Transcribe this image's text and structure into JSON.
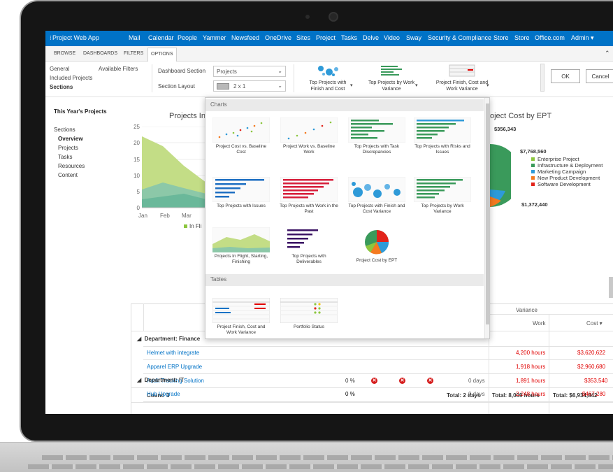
{
  "suite": {
    "app_title": "Project Web App",
    "nav": [
      "Mail",
      "Calendar",
      "People",
      "Yammer",
      "Newsfeed",
      "OneDrive",
      "Sites",
      "Project",
      "Tasks",
      "Delve",
      "Video",
      "Sway",
      "Security & Compliance",
      "Store",
      "Store",
      "Office.com"
    ],
    "admin": "Admin ▾",
    "accent": "#0072c6"
  },
  "ribbon_tabs": [
    "BROWSE",
    "DASHBOARDS",
    "FILTERS",
    "OPTIONS"
  ],
  "ribbon": {
    "general": "General",
    "included_projects": "Included Projects",
    "sections": "Sections",
    "available_filters": "Available Filters",
    "dashboard_section_label": "Dashboard Section",
    "dashboard_section_value": "Projects",
    "section_layout_label": "Section Layout",
    "section_layout_value": "2 x 1",
    "btn1": "Top Projects with Finish and Cost",
    "btn2": "Top Projects by Work Variance",
    "btn3": "Project Finish, Cost and Work Variance",
    "ok": "OK",
    "cancel": "Cancel"
  },
  "sidebar": {
    "title": "This Year's Projects",
    "sections_label": "Sections",
    "items": [
      "Overview",
      "Projects",
      "Tasks",
      "Resources",
      "Content"
    ]
  },
  "area_chart": {
    "title": "Projects In",
    "y_ticks": [
      "25",
      "20",
      "15",
      "10",
      "5",
      "0"
    ],
    "x_ticks": [
      "Jan",
      "Feb",
      "Mar"
    ],
    "legend": "In Fli"
  },
  "pie_chart": {
    "title": "oject Cost by EPT",
    "labels": [
      "$356,343",
      "$7,768,560",
      "$1,372,440"
    ],
    "legend": [
      {
        "name": "Enterprise Project",
        "color": "#8cc63f"
      },
      {
        "name": "Infrastructure & Deployment",
        "color": "#3a9a5b"
      },
      {
        "name": "Marketing Campaign",
        "color": "#2e9ad8"
      },
      {
        "name": "New Product Development",
        "color": "#f47a20"
      },
      {
        "name": "Software Development",
        "color": "#e2231a"
      }
    ]
  },
  "popup": {
    "charts_header": "Charts",
    "tables_header": "Tables",
    "charts": [
      "Project Cost vs. Baseline Cost",
      "Project Work vs. Baseline Work",
      "Top Projects with Task Discrepancies",
      "Top Projects with Risks and Issues",
      "Top Projects with Issues",
      "Top Projects with Work in the Past",
      "Top Projects with Finish and Cost Variance",
      "Top Projects by Work Variance",
      "Projects In Flight, Starting, Finishing",
      "Top Projects with Deliverables",
      "Project Cost by EPT"
    ],
    "tables": [
      "Project Finish, Cost and Work Variance",
      "Portfolio Status"
    ]
  },
  "table": {
    "variance": "Variance",
    "work": "Work",
    "cost": "Cost ▾",
    "dept_finance": "Department: Finance",
    "dept_it": "Department: IT",
    "rows": [
      {
        "name": "Helmet with integrate",
        "pct": "",
        "days": "",
        "work": "4,200 hours",
        "cost": "$3,620,622"
      },
      {
        "name": "Apparel ERP Upgrade",
        "pct": "",
        "days": "",
        "work": "1,918 hours",
        "cost": "$2,960,680"
      },
      {
        "name": "Audit Tracking Solution",
        "pct": "0 %",
        "days": "0 days",
        "work": "1,891 hours",
        "cost": "$353,540"
      }
    ],
    "count": "Count: 3",
    "total_days": "Total: 2 days",
    "total_work": "Total: 8,009 hours",
    "total_cost": "Total: $6,934,842",
    "it_row": {
      "name": "Hub Upgrade",
      "pct": "0 %",
      "days": "0 days",
      "work": "2,248 hours",
      "cost": "$467,280"
    }
  }
}
